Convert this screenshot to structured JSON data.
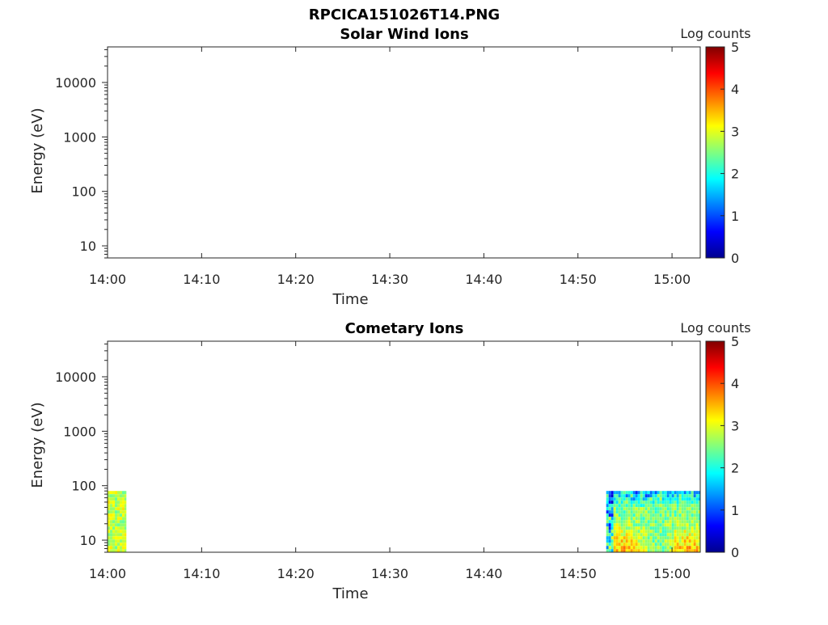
{
  "figure": {
    "suptitle": "RPCICA151026T14.PNG"
  },
  "chart_data": [
    {
      "type": "heatmap",
      "title": "Solar Wind Ions",
      "xlabel": "Time",
      "ylabel": "Energy (eV)",
      "x_ticks": [
        "14:00",
        "14:10",
        "14:20",
        "14:30",
        "14:40",
        "14:50",
        "15:00"
      ],
      "x_range": [
        "14:00",
        "15:03"
      ],
      "y_scale": "log",
      "y_ticks": [
        "10",
        "100",
        "1000",
        "10000"
      ],
      "y_range": [
        6,
        45000
      ],
      "colorbar": {
        "label": "Log counts",
        "range": [
          0,
          5
        ],
        "ticks": [
          "0",
          "1",
          "2",
          "3",
          "4",
          "5"
        ]
      },
      "data_regions": []
    },
    {
      "type": "heatmap",
      "title": "Cometary Ions",
      "xlabel": "Time",
      "ylabel": "Energy (eV)",
      "x_ticks": [
        "14:00",
        "14:10",
        "14:20",
        "14:30",
        "14:40",
        "14:50",
        "15:00"
      ],
      "x_range": [
        "14:00",
        "15:03"
      ],
      "y_scale": "log",
      "y_ticks": [
        "10",
        "100",
        "1000",
        "10000"
      ],
      "y_range": [
        6,
        45000
      ],
      "colorbar": {
        "label": "Log counts",
        "range": [
          0,
          5
        ],
        "ticks": [
          "0",
          "1",
          "2",
          "3",
          "4",
          "5"
        ]
      },
      "data_regions": [
        {
          "t_start": "14:00",
          "t_end": "14:02",
          "e_min": 6,
          "e_max": 80,
          "log_counts_typical": 2.8
        },
        {
          "t_start": "14:53",
          "t_end": "15:03",
          "e_min": 6,
          "e_max": 80,
          "log_counts_typical": 2.5,
          "log_counts_max": 3.7
        }
      ]
    }
  ]
}
